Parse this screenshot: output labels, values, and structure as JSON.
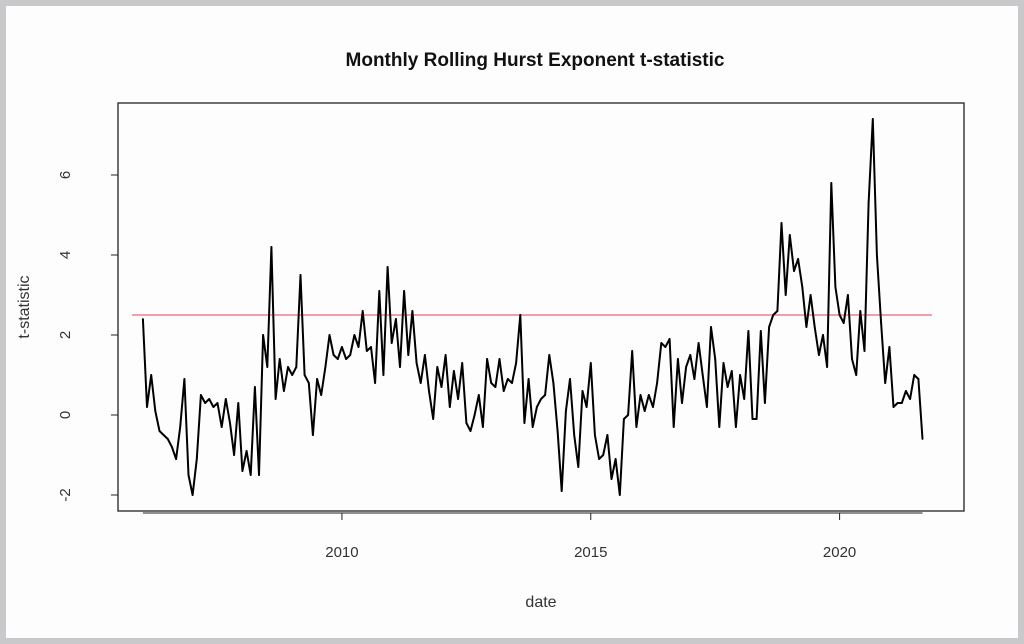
{
  "chart_data": {
    "type": "line",
    "title": "Monthly Rolling Hurst Exponent t-statistic",
    "xlabel": "date",
    "ylabel": "t-statistic",
    "xlim": [
      2005.5,
      2022.5
    ],
    "ylim": [
      -2.4,
      7.8
    ],
    "x_ticks": [
      2010,
      2015,
      2020
    ],
    "y_ticks": [
      -2,
      0,
      2,
      4,
      6
    ],
    "grid": false,
    "legend": "none",
    "colors": {
      "series": "#000000",
      "threshold": "#f08090",
      "frame": "#c9c9cc"
    },
    "threshold": {
      "y": 2.5
    },
    "series": [
      {
        "start": 2006.0,
        "step_months": 1,
        "values": [
          2.4,
          0.2,
          1.0,
          0.1,
          -0.4,
          -0.5,
          -0.6,
          -0.8,
          -1.1,
          -0.3,
          0.9,
          -1.5,
          -2.0,
          -1.1,
          0.5,
          0.3,
          0.4,
          0.2,
          0.3,
          -0.3,
          0.4,
          -0.2,
          -1.0,
          0.3,
          -1.4,
          -0.9,
          -1.5,
          0.7,
          -1.5,
          2.0,
          1.2,
          4.2,
          0.4,
          1.4,
          0.6,
          1.2,
          1.0,
          1.2,
          3.5,
          1.0,
          0.8,
          -0.5,
          0.9,
          0.5,
          1.2,
          2.0,
          1.5,
          1.4,
          1.7,
          1.4,
          1.5,
          2.0,
          1.7,
          2.6,
          1.6,
          1.7,
          0.8,
          3.1,
          1.0,
          3.7,
          1.8,
          2.4,
          1.2,
          3.1,
          1.5,
          2.6,
          1.3,
          0.8,
          1.5,
          0.6,
          -0.1,
          1.2,
          0.7,
          1.5,
          0.2,
          1.1,
          0.4,
          1.3,
          -0.2,
          -0.4,
          0.0,
          0.5,
          -0.3,
          1.4,
          0.8,
          0.7,
          1.4,
          0.6,
          0.9,
          0.8,
          1.3,
          2.5,
          -0.2,
          0.9,
          -0.3,
          0.2,
          0.4,
          0.5,
          1.5,
          0.8,
          -0.4,
          -1.9,
          0.1,
          0.9,
          -0.5,
          -1.3,
          0.6,
          0.2,
          1.3,
          -0.5,
          -1.1,
          -1.0,
          -0.5,
          -1.6,
          -1.1,
          -2.0,
          -0.1,
          0.0,
          1.6,
          -0.3,
          0.5,
          0.1,
          0.5,
          0.2,
          0.8,
          1.8,
          1.7,
          1.9,
          -0.3,
          1.4,
          0.3,
          1.2,
          1.5,
          0.9,
          1.8,
          1.0,
          0.2,
          2.2,
          1.4,
          -0.3,
          1.3,
          0.7,
          1.1,
          -0.3,
          1.0,
          0.4,
          2.1,
          -0.1,
          -0.1,
          2.1,
          0.3,
          2.2,
          2.5,
          2.6,
          4.8,
          3.0,
          4.5,
          3.6,
          3.9,
          3.2,
          2.2,
          3.0,
          2.2,
          1.5,
          2.0,
          1.2,
          5.8,
          3.2,
          2.5,
          2.3,
          3.0,
          1.4,
          1.0,
          2.6,
          1.6,
          5.3,
          7.4,
          4.0,
          2.3,
          0.8,
          1.7,
          0.2,
          0.3,
          0.3,
          0.6,
          0.4,
          1.0,
          0.9,
          -0.6
        ]
      }
    ]
  }
}
